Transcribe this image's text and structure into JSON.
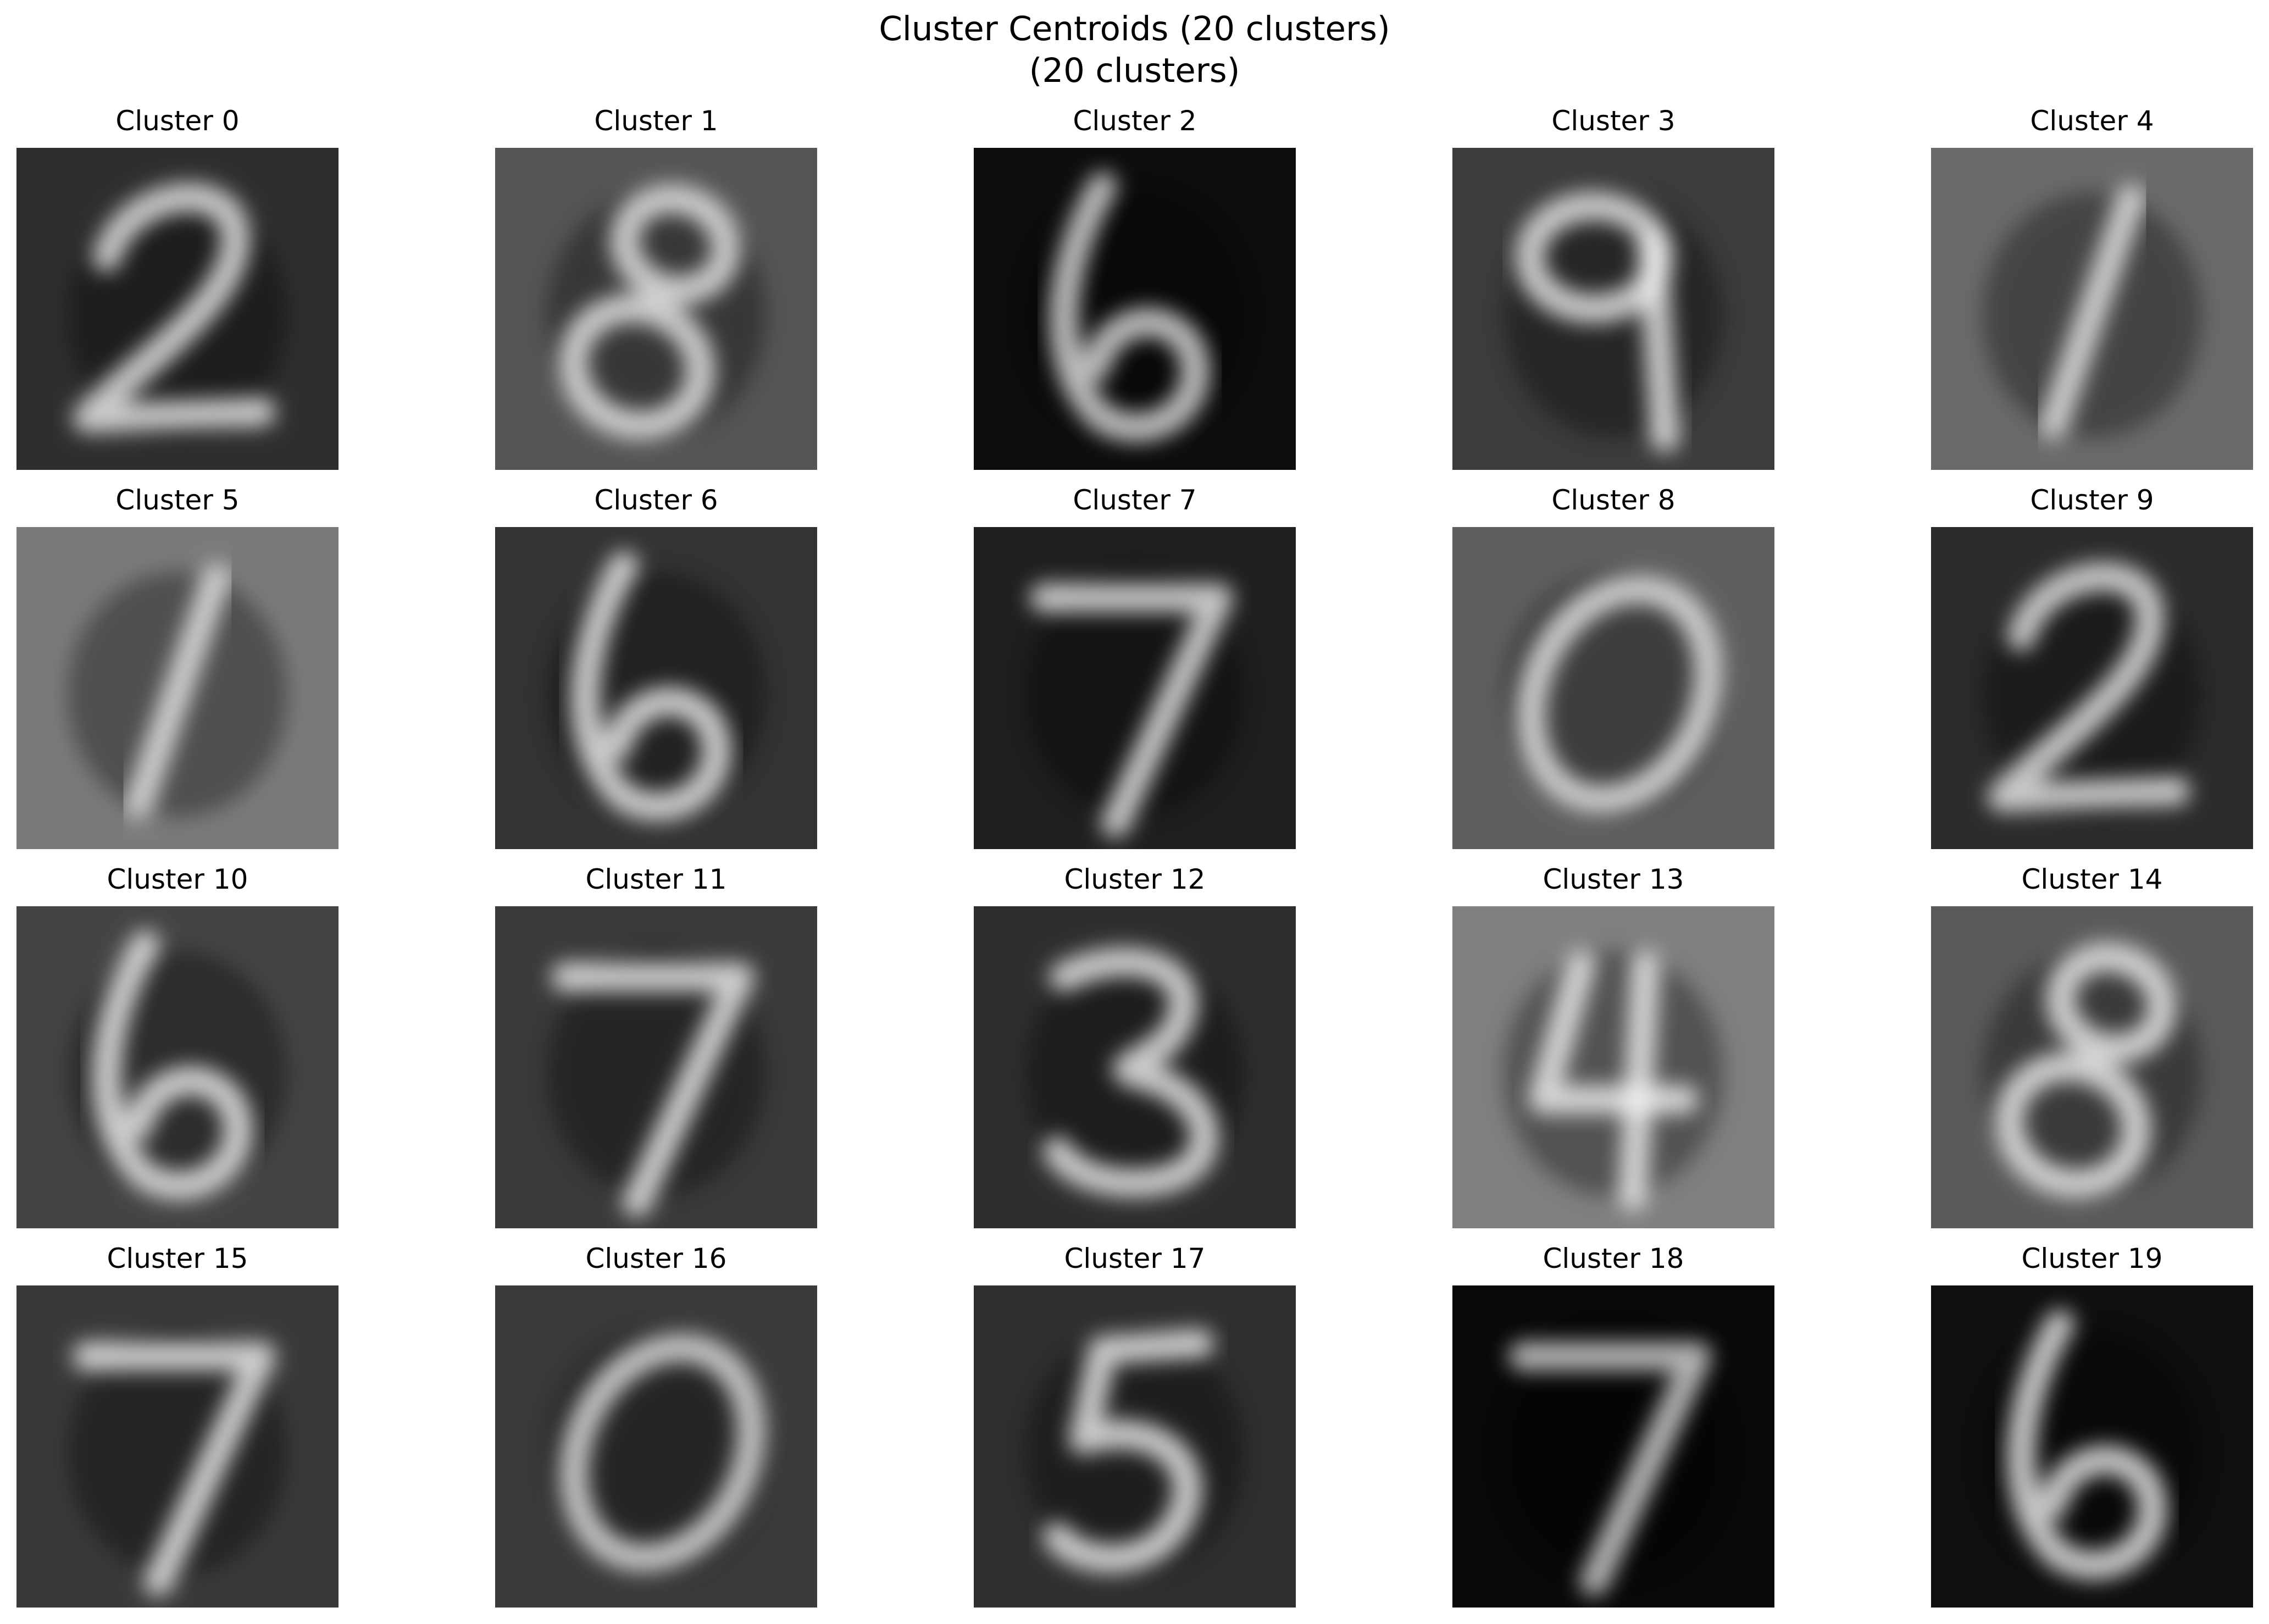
{
  "title": {
    "line1": "Cluster Centroids (20 clusters)",
    "line2": "(20 clusters)"
  },
  "chart_data": {
    "type": "image-grid",
    "rows": 4,
    "columns": 5,
    "colormap": "gray",
    "axes": "off",
    "panels": [
      {
        "title": "Cluster 0",
        "digit": "2",
        "background": "#2e2e2e",
        "bright": "#f2f2f2"
      },
      {
        "title": "Cluster 1",
        "digit": "8",
        "background": "#555555",
        "bright": "#f0f0f0"
      },
      {
        "title": "Cluster 2",
        "digit": "6",
        "background": "#0d0d0d",
        "bright": "#e8e8e8"
      },
      {
        "title": "Cluster 3",
        "digit": "9",
        "background": "#3c3c3c",
        "bright": "#f2f2f2"
      },
      {
        "title": "Cluster 4",
        "digit": "1",
        "background": "#6a6a6a",
        "bright": "#eeeeee"
      },
      {
        "title": "Cluster 5",
        "digit": "1",
        "background": "#7a7a7a",
        "bright": "#eeeeee"
      },
      {
        "title": "Cluster 6",
        "digit": "6",
        "background": "#333333",
        "bright": "#f5f5f5"
      },
      {
        "title": "Cluster 7",
        "digit": "7",
        "background": "#1f1f1f",
        "bright": "#f0f0f0"
      },
      {
        "title": "Cluster 8",
        "digit": "0",
        "background": "#5f5f5f",
        "bright": "#eeeeee"
      },
      {
        "title": "Cluster 9",
        "digit": "2",
        "background": "#2b2b2b",
        "bright": "#f0f0f0"
      },
      {
        "title": "Cluster 10",
        "digit": "6",
        "background": "#444444",
        "bright": "#f5f5f5"
      },
      {
        "title": "Cluster 11",
        "digit": "7",
        "background": "#3a3a3a",
        "bright": "#f5f5f5"
      },
      {
        "title": "Cluster 12",
        "digit": "3",
        "background": "#2e2e2e",
        "bright": "#f5f5f5"
      },
      {
        "title": "Cluster 13",
        "digit": "4",
        "background": "#7f7f7f",
        "bright": "#f5f5f5"
      },
      {
        "title": "Cluster 14",
        "digit": "8",
        "background": "#5a5a5a",
        "bright": "#f5f5f5"
      },
      {
        "title": "Cluster 15",
        "digit": "7",
        "background": "#393939",
        "bright": "#f5f5f5"
      },
      {
        "title": "Cluster 16",
        "digit": "0",
        "background": "#3a3a3a",
        "bright": "#e8e8e8"
      },
      {
        "title": "Cluster 17",
        "digit": "5",
        "background": "#2f2f2f",
        "bright": "#f5f5f5"
      },
      {
        "title": "Cluster 18",
        "digit": "7",
        "background": "#080808",
        "bright": "#dddddd"
      },
      {
        "title": "Cluster 19",
        "digit": "6",
        "background": "#0f0f0f",
        "bright": "#f5f5f5"
      }
    ]
  }
}
